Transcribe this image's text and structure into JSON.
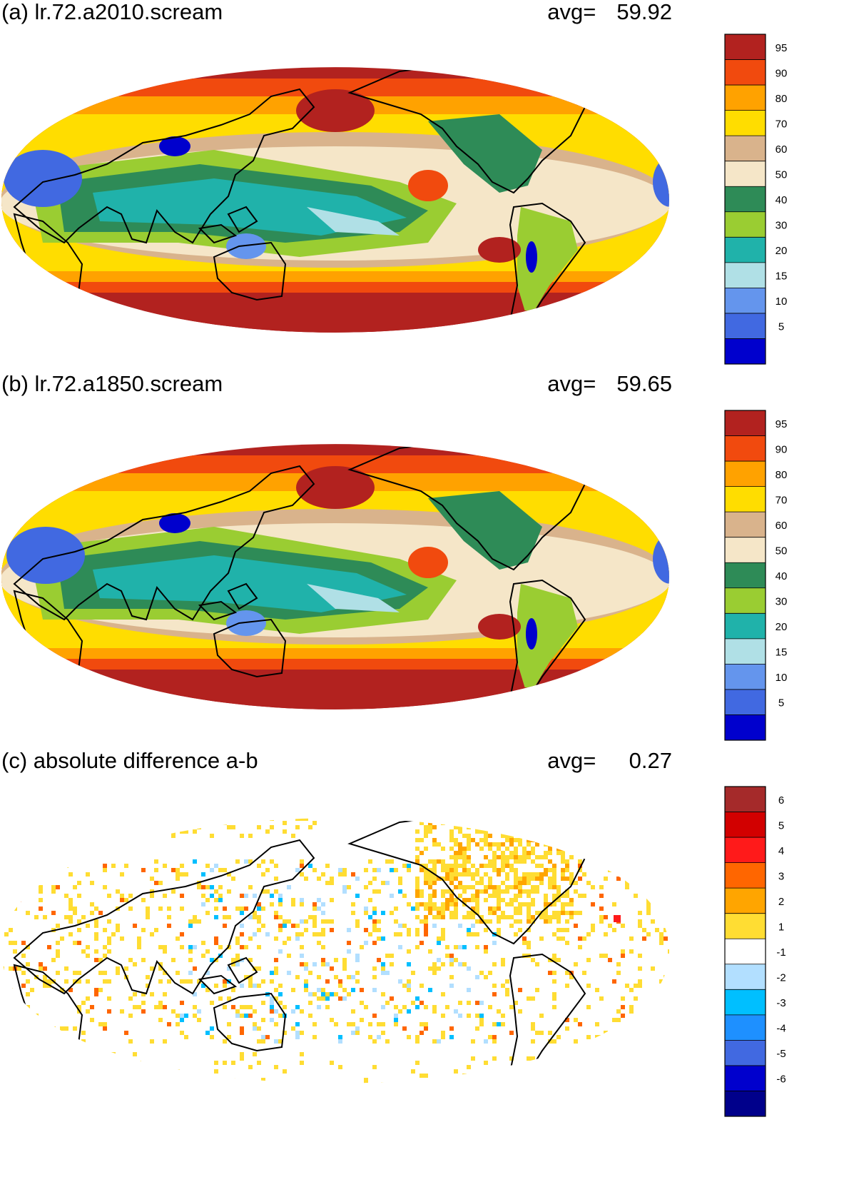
{
  "panels": [
    {
      "id": "a",
      "title": "(a) lr.72.a2010.scream",
      "avg_label": "avg=",
      "avg_value": "59.92"
    },
    {
      "id": "b",
      "title": "(b) lr.72.a1850.scream",
      "avg_label": "avg=",
      "avg_value": "59.65"
    },
    {
      "id": "c",
      "title": "(c) absolute difference a-b",
      "avg_label": "avg=",
      "avg_value": "0.27"
    }
  ],
  "colorbars": {
    "field": {
      "labels": [
        "95",
        "90",
        "80",
        "70",
        "60",
        "50",
        "40",
        "30",
        "20",
        "15",
        "10",
        "5"
      ],
      "colors": [
        "#b2221f",
        "#f14a0e",
        "#ffa200",
        "#ffdd00",
        "#d9b38c",
        "#f5e6c8",
        "#2e8b57",
        "#9acd32",
        "#20b2aa",
        "#b0e0e6",
        "#6495ed",
        "#4169e1",
        "#0000cd"
      ]
    },
    "diff": {
      "labels": [
        "6",
        "5",
        "4",
        "3",
        "2",
        "1",
        "-1",
        "-2",
        "-3",
        "-4",
        "-5",
        "-6"
      ],
      "colors": [
        "#a52a2a",
        "#d20000",
        "#ff1a1a",
        "#ff6600",
        "#ffa500",
        "#ffdd33",
        "#ffffff",
        "#b2dfff",
        "#00bfff",
        "#1e90ff",
        "#4169e1",
        "#0000cd",
        "#00008b"
      ]
    }
  }
}
